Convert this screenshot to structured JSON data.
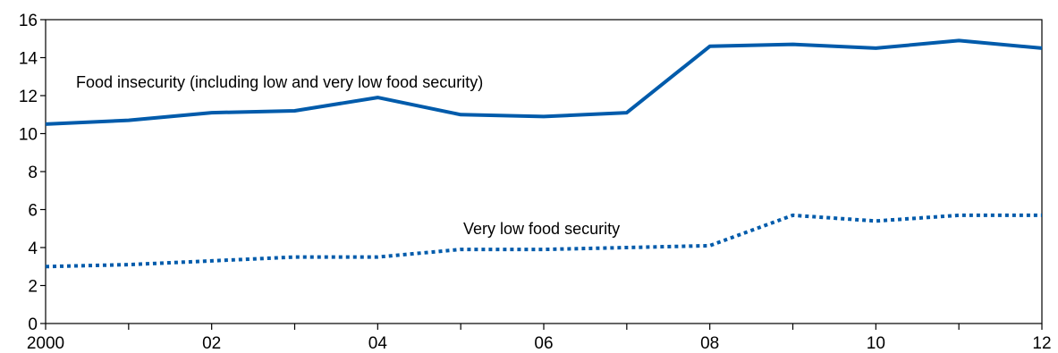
{
  "chart_data": {
    "type": "line",
    "x": [
      2000,
      2001,
      2002,
      2003,
      2004,
      2005,
      2006,
      2007,
      2008,
      2009,
      2010,
      2011,
      2012
    ],
    "x_tick_values": [
      2000,
      2002,
      2004,
      2006,
      2008,
      2010,
      2012
    ],
    "x_tick_labels": [
      "2000",
      "02",
      "04",
      "06",
      "08",
      "10",
      "12"
    ],
    "y_ticks": [
      0,
      2,
      4,
      6,
      8,
      10,
      12,
      14,
      16
    ],
    "xlim": [
      2000,
      2012
    ],
    "ylim": [
      0,
      16
    ],
    "grid": false,
    "colors": {
      "series": "#005bab"
    },
    "series": [
      {
        "name": "Food insecurity (including low and very low food security)",
        "style": "solid",
        "values": [
          10.5,
          10.7,
          11.1,
          11.2,
          11.9,
          11.0,
          10.9,
          11.1,
          14.6,
          14.7,
          14.5,
          14.9,
          14.5
        ]
      },
      {
        "name": "Very low food security",
        "style": "dotted",
        "values": [
          3.0,
          3.1,
          3.3,
          3.5,
          3.5,
          3.9,
          3.9,
          4.0,
          4.1,
          5.7,
          5.4,
          5.7,
          5.7
        ]
      }
    ]
  }
}
